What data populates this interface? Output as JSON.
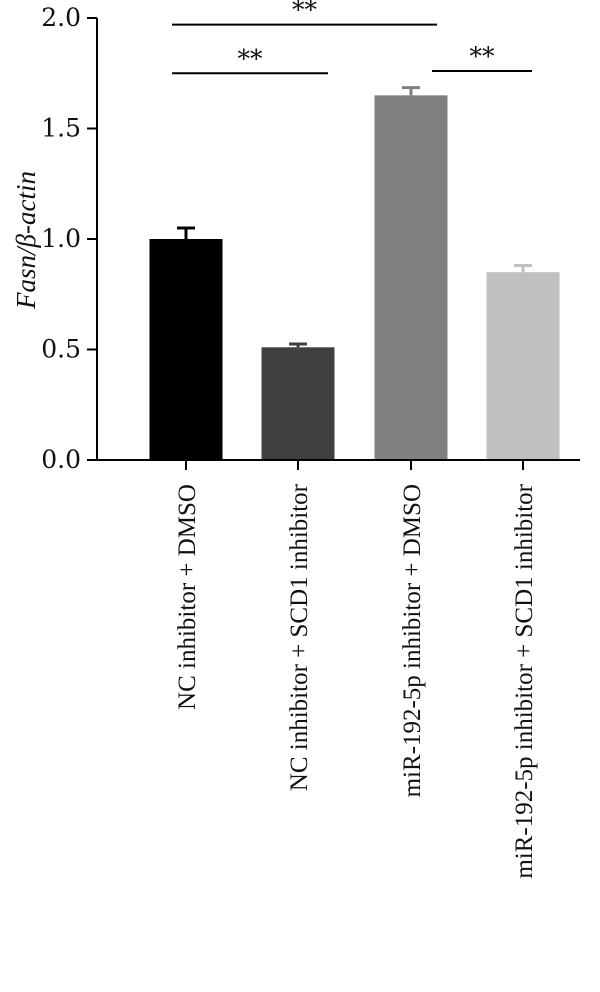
{
  "chart_data": {
    "type": "bar",
    "ylabel": "Fasn/β-actin",
    "ylim": [
      0,
      2.0
    ],
    "yticks": [
      0.0,
      0.5,
      1.0,
      1.5,
      2.0
    ],
    "ytick_labels": [
      "0.0",
      "0.5",
      "1.0",
      "1.5",
      "2.0"
    ],
    "categories": [
      "NC inhibitor + DMSO",
      "NC inhibitor + SCD1 inhibitor",
      "miR-192-5p inhibitor + DMSO",
      "miR-192-5p inhibitor + SCD1 inhibitor"
    ],
    "values": [
      1.0,
      0.51,
      1.65,
      0.85
    ],
    "errors": [
      0.05,
      0.015,
      0.035,
      0.03
    ],
    "bar_colors": [
      "#000000",
      "#404040",
      "#808080",
      "#c0c0c0"
    ],
    "significance": [
      {
        "from": 0,
        "to": 1,
        "y": 1.75,
        "label": "**"
      },
      {
        "from": 0,
        "to": 2,
        "y": 1.97,
        "label": "**"
      },
      {
        "from": 2,
        "to": 3,
        "y": 1.76,
        "label": "**"
      }
    ]
  }
}
